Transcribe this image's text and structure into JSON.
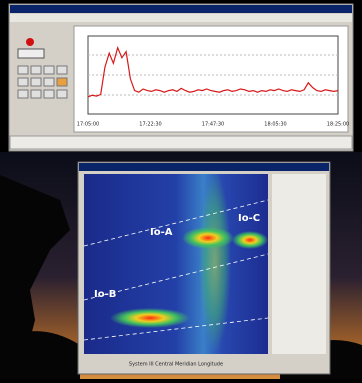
{
  "strip_chart": {
    "type": "line",
    "color": "#d81818",
    "values": [
      22,
      24,
      23,
      25,
      60,
      78,
      65,
      85,
      72,
      80,
      45,
      30,
      28,
      32,
      30,
      29,
      31,
      30,
      28,
      30,
      31,
      29,
      33,
      30,
      28,
      29,
      31,
      30,
      32,
      30,
      29,
      28,
      30,
      31,
      29,
      30,
      32,
      31,
      29,
      30,
      28,
      30,
      29,
      31,
      30,
      32,
      30,
      29,
      31,
      30,
      29,
      31,
      40,
      34,
      30,
      29,
      31,
      30,
      29,
      30
    ],
    "ylim": [
      0,
      100
    ],
    "x_labels": [
      "17:05:00",
      "17:22:30",
      "17:47:30",
      "18:05:30",
      "18:25:00"
    ]
  },
  "spectrogram": {
    "labels": [
      "Io-A",
      "Io-C",
      "Io-B"
    ],
    "caption": "System III Central Meridian Longitude"
  }
}
